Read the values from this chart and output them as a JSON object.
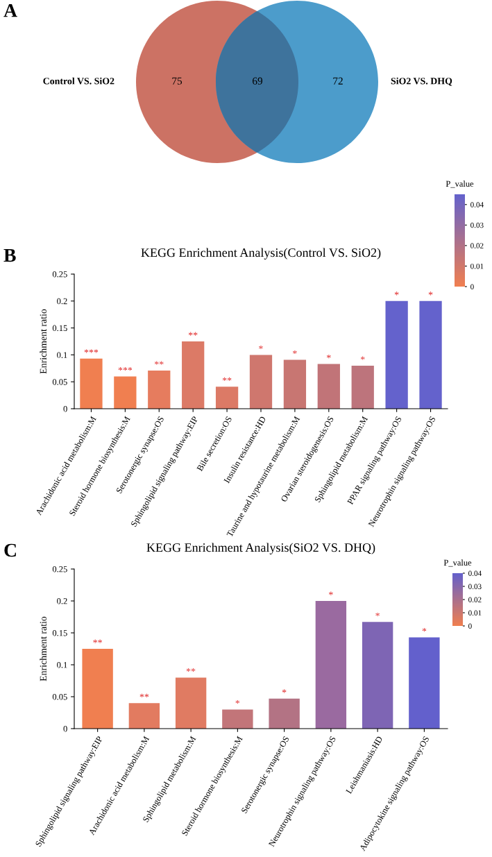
{
  "chart_data": [
    {
      "type": "other",
      "annotations": [
        "A"
      ],
      "categories": [
        "Control VS. SiO2",
        null,
        "SiO2 VS. DHQ"
      ],
      "values": [
        75,
        69,
        72
      ],
      "colors": [
        "#cc7264",
        "#3e739c",
        "#4c9ccb"
      ],
      "data_labels": true
    },
    {
      "type": "bar",
      "title": "KEGG Enrichment Analysis(Control VS. SiO2)",
      "ylabel": "Enrichment ratio",
      "clabel": "P_value",
      "annotations": [
        "B"
      ],
      "categories": [
        "Arachidonic acid metabolism:M",
        "Steroid hormone biosynthesis:M",
        "Serotonergic synapse:OS",
        "Sphingolipid signaling pathway:EIP",
        "Bile secretion:OS",
        "Insulin resistance:HD",
        "Taurine and hypotaurine metabolism:M",
        "Ovarian steroidogenesis:OS",
        "Sphingolipid metabolism:M",
        "PPAR signaling pathway:OS",
        "Neurotrophin signaling pathway:OS"
      ],
      "values": [
        0.093,
        0.06,
        0.071,
        0.125,
        0.041,
        0.1,
        0.091,
        0.083,
        0.08,
        0.2,
        0.2
      ],
      "colors": [
        "#f07f50",
        "#f07f50",
        "#e67c5e",
        "#dc7a66",
        "#dc7a66",
        "#cf776e",
        "#c87672",
        "#c17478",
        "#bd747c",
        "#6462cc",
        "#6462cc"
      ],
      "value_labels": [
        "***",
        "***",
        "**",
        "**",
        "**",
        "*",
        "*",
        "*",
        "*",
        "*",
        "*"
      ],
      "ylim": [
        0,
        0.25
      ],
      "yticks": [
        0,
        0.05,
        0.1,
        0.15,
        0.2,
        0.25
      ],
      "clim": [
        0,
        0.045
      ],
      "cticks": [
        0,
        0.01,
        0.02,
        0.03,
        0.04
      ],
      "grid": false,
      "legend": false
    },
    {
      "type": "bar",
      "title": "KEGG Enrichment Analysis(SiO2 VS. DHQ)",
      "ylabel": "Enrichment ratio",
      "clabel": "P_value",
      "annotations": [
        "C"
      ],
      "categories": [
        "Sphingolipid signaling pathway:EIP",
        "Arachidonic acid metabolism:M",
        "Sphingolipid metabolism:M",
        "Steroid hormone biosynthesis:M",
        "Serotonergic synapse:OS",
        "Neurotrophin signaling pathway:OS",
        "Leishmaniasis:HD",
        "Adipocytokine signaling pathway:OS"
      ],
      "values": [
        0.125,
        0.04,
        0.08,
        0.03,
        0.047,
        0.2,
        0.167,
        0.143
      ],
      "colors": [
        "#f07f50",
        "#e27b60",
        "#e07b62",
        "#c27579",
        "#b37384",
        "#9a6aa0",
        "#7e65b4",
        "#6360cc"
      ],
      "value_labels": [
        "**",
        "**",
        "**",
        "*",
        "*",
        "*",
        "*",
        "*"
      ],
      "ylim": [
        0,
        0.25
      ],
      "yticks": [
        0,
        0.05,
        0.1,
        0.15,
        0.2,
        0.25
      ],
      "clim": [
        0,
        0.04
      ],
      "cticks": [
        0,
        0.01,
        0.02,
        0.03,
        0.04
      ],
      "grid": false,
      "legend": false
    }
  ]
}
